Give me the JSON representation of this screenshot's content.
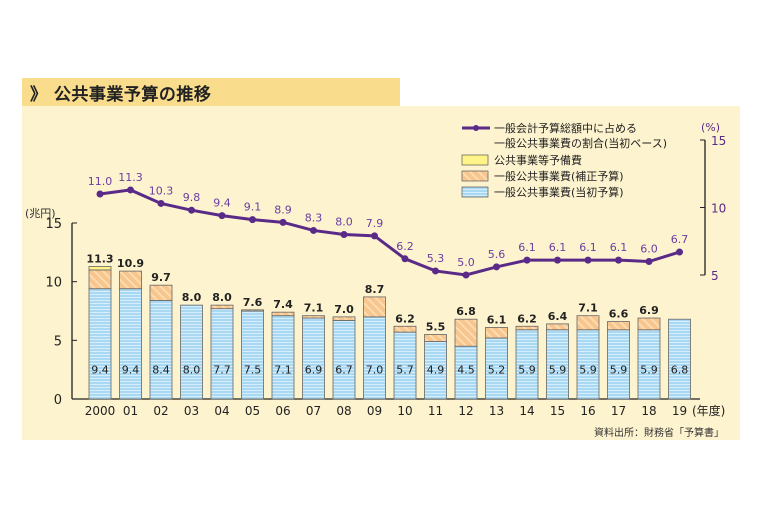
{
  "header": {
    "title": "公共事業予算の推移",
    "title_icon": "double-chevron-right-icon"
  },
  "source_note": "資料出所：財務省「予算書」",
  "colors": {
    "title_bg": "#f9dc8c",
    "panel_bg": "#fdf3cf",
    "initial": "#a9d9f2",
    "supplementary": "#f8c58c",
    "reserve": "#fff38a",
    "line": "#5a2a88"
  },
  "chart_data": {
    "type": "bar+line",
    "categories": [
      "2000",
      "01",
      "02",
      "03",
      "04",
      "05",
      "06",
      "07",
      "08",
      "09",
      "10",
      "11",
      "12",
      "13",
      "14",
      "15",
      "16",
      "17",
      "18",
      "19"
    ],
    "x_unit_label": "(年度)",
    "left_axis": {
      "label": "(兆円)",
      "range": [
        0,
        15
      ],
      "ticks": [
        0,
        5,
        10,
        15
      ]
    },
    "right_axis": {
      "label": "(%)",
      "range": [
        5,
        15
      ],
      "ticks": [
        5,
        10,
        15
      ]
    },
    "bar_series": [
      {
        "name": "一般公共事業費(当初予算)",
        "values": [
          9.4,
          9.4,
          8.4,
          8.0,
          7.7,
          7.5,
          7.1,
          6.9,
          6.7,
          7.0,
          5.7,
          4.9,
          4.5,
          5.2,
          5.9,
          5.9,
          5.9,
          5.9,
          5.9,
          6.8
        ]
      },
      {
        "name": "一般公共事業費(補正予算)",
        "values": [
          1.6,
          1.5,
          1.3,
          0.0,
          0.3,
          0.1,
          0.3,
          0.2,
          0.3,
          1.7,
          0.5,
          0.6,
          2.3,
          0.9,
          0.3,
          0.5,
          1.2,
          0.7,
          1.0,
          0
        ]
      },
      {
        "name": "公共事業等予備費",
        "values": [
          0.3,
          0,
          0,
          0,
          0,
          0,
          0,
          0,
          0,
          0,
          0,
          0,
          0,
          0,
          0,
          0,
          0,
          0,
          0,
          0
        ]
      }
    ],
    "bar_totals": [
      "11.3",
      "10.9",
      "9.7",
      "8.0",
      "8.0",
      "7.6",
      "7.4",
      "7.1",
      "7.0",
      "8.7",
      "6.2",
      "5.5",
      "6.8",
      "6.1",
      "6.2",
      "6.4",
      "7.1",
      "6.6",
      "6.9",
      ""
    ],
    "bar_initial_labels": [
      "9.4",
      "9.4",
      "8.4",
      "8.0",
      "7.7",
      "7.5",
      "7.1",
      "6.9",
      "6.7",
      "7.0",
      "5.7",
      "4.9",
      "4.5",
      "5.2",
      "5.9",
      "5.9",
      "5.9",
      "5.9",
      "5.9",
      "6.8"
    ],
    "line_series": {
      "name_line1": "一般会計予算総額中に占める",
      "name_line2": "一般公共事業費の割合(当初ベース)",
      "values": [
        11.0,
        11.3,
        10.3,
        9.8,
        9.4,
        9.1,
        8.9,
        8.3,
        8.0,
        7.9,
        6.2,
        5.3,
        5.0,
        5.6,
        6.1,
        6.1,
        6.1,
        6.1,
        6.0,
        6.7
      ],
      "labels": [
        "11.0",
        "11.3",
        "10.3",
        "9.8",
        "9.4",
        "9.1",
        "8.9",
        "8.3",
        "8.0",
        "7.9",
        "6.2",
        "5.3",
        "5.0",
        "5.6",
        "6.1",
        "6.1",
        "6.1",
        "6.1",
        "6.0",
        "6.7"
      ]
    },
    "legend": {
      "reserve": "公共事業等予備費",
      "supplementary": "一般公共事業費(補正予算)",
      "initial": "一般公共事業費(当初予算)",
      "placement": "top-right"
    }
  }
}
